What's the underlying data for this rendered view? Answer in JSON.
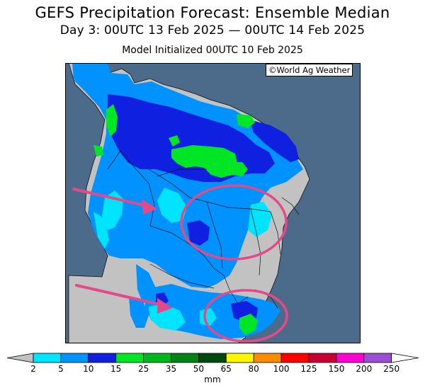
{
  "title": "GEFS Precipitation Forecast: Ensemble Median",
  "period": "Day 3: 00UTC 13 Feb 2025 — 00UTC 14 Feb 2025",
  "init": "Model Initialized 00UTC 10 Feb 2025",
  "credit": "©World Ag Weather",
  "colors": {
    "ocean": "#4c6b8b",
    "land_dry": "#c2c2c2",
    "annotation": "#e34a88"
  },
  "colorbar": {
    "unit": "mm",
    "bins": [
      {
        "label": "2",
        "color": "#00e4ff"
      },
      {
        "label": "5",
        "color": "#0092ff"
      },
      {
        "label": "10",
        "color": "#1020e0"
      },
      {
        "label": "15",
        "color": "#00e624"
      },
      {
        "label": "25",
        "color": "#00b61d"
      },
      {
        "label": "35",
        "color": "#008216"
      },
      {
        "label": "50",
        "color": "#00480f"
      },
      {
        "label": "65",
        "color": "#fff600"
      },
      {
        "label": "80",
        "color": "#ff8c00"
      },
      {
        "label": "100",
        "color": "#ff0000"
      },
      {
        "label": "125",
        "color": "#c80032"
      },
      {
        "label": "150",
        "color": "#ff00d4"
      },
      {
        "label": "200",
        "color": "#9a4fd0"
      },
      {
        "label": "250",
        "color": ""
      }
    ],
    "low_extend_color": "#c2c2c2",
    "high_extend_color": "#ffffff"
  }
}
